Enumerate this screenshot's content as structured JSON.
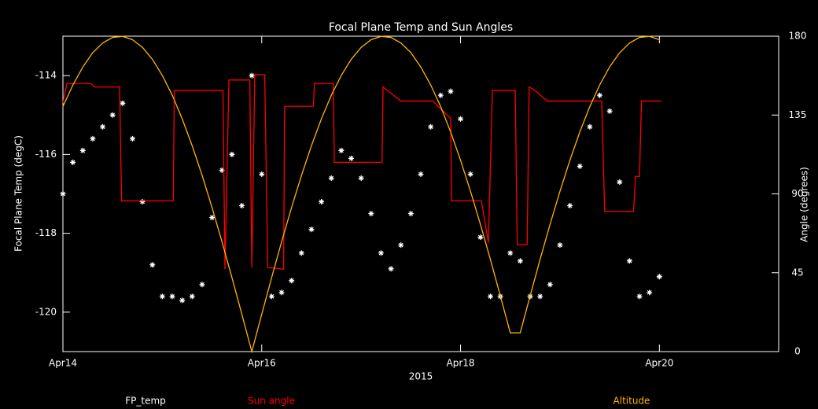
{
  "chart_data": {
    "type": "line",
    "title": "Focal Plane Temp and Sun Angles",
    "xlabel": "2015",
    "ylabel": "Focal Plane Temp (degC)",
    "y2label": "Angle (degrees)",
    "xlim": [
      0,
      7.2
    ],
    "xticks": [
      {
        "value": 0,
        "label": "Apr14"
      },
      {
        "value": 2,
        "label": "Apr16"
      },
      {
        "value": 4,
        "label": "Apr18"
      },
      {
        "value": 6,
        "label": "Apr20"
      }
    ],
    "ylim": [
      -121,
      -113
    ],
    "yticks": [
      -120,
      -118,
      -116,
      -114
    ],
    "y2lim": [
      0,
      180
    ],
    "y2ticks": [
      0,
      45,
      90,
      135,
      180
    ],
    "axis_color": "#ffffff",
    "series": [
      {
        "name": "FP_temp",
        "color": "#ffffff",
        "mode": "markers",
        "axis": "y",
        "x": [
          0,
          0.1,
          0.2,
          0.3,
          0.4,
          0.5,
          0.6,
          0.7,
          0.8,
          0.9,
          1.0,
          1.1,
          1.2,
          1.3,
          1.4,
          1.5,
          1.6,
          1.7,
          1.8,
          1.9,
          2.0,
          2.1,
          2.2,
          2.3,
          2.4,
          2.5,
          2.6,
          2.7,
          2.8,
          2.9,
          3.0,
          3.1,
          3.2,
          3.3,
          3.4,
          3.5,
          3.6,
          3.7,
          3.8,
          3.9,
          4.0,
          4.1,
          4.2,
          4.3,
          4.4,
          4.5,
          4.6,
          4.7,
          4.8,
          4.9,
          5.0,
          5.1,
          5.2,
          5.3,
          5.4,
          5.5,
          5.6,
          5.7,
          5.8,
          5.9,
          6.0
        ],
        "values": [
          -117.0,
          -116.2,
          -115.9,
          -115.6,
          -115.3,
          -115.0,
          -114.7,
          -115.6,
          -117.2,
          -118.8,
          -119.6,
          -119.6,
          -119.7,
          -119.6,
          -119.3,
          -117.6,
          -116.4,
          -116.0,
          -117.3,
          -114.0,
          -116.5,
          -119.6,
          -119.5,
          -119.2,
          -118.5,
          -117.9,
          -117.2,
          -116.6,
          -115.9,
          -116.1,
          -116.6,
          -117.5,
          -118.5,
          -118.9,
          -118.3,
          -117.5,
          -116.5,
          -115.3,
          -114.5,
          -114.4,
          -115.1,
          -116.5,
          -118.1,
          -119.6,
          -119.6,
          -118.5,
          -118.7,
          -119.6,
          -119.6,
          -119.3,
          -118.3,
          -117.3,
          -116.3,
          -115.3,
          -114.5,
          -114.9,
          -116.7,
          -118.7,
          -119.6,
          -119.5,
          -119.1
        ]
      },
      {
        "name": "Sun angle",
        "color": "#ff0000",
        "mode": "line",
        "axis": "y2",
        "x": [
          0,
          0.04,
          0.28,
          0.32,
          0.57,
          0.59,
          1.11,
          1.12,
          1.61,
          1.63,
          1.67,
          1.88,
          1.9,
          1.93,
          2.03,
          2.06,
          2.22,
          2.23,
          2.52,
          2.53,
          2.72,
          2.73,
          3.21,
          3.22,
          3.4,
          3.72,
          3.9,
          3.91,
          4.21,
          4.28,
          4.32,
          4.55,
          4.57,
          4.67,
          4.69,
          4.75,
          4.87,
          5.42,
          5.45,
          5.74,
          5.76,
          5.8,
          5.82,
          6.02
        ],
        "values": [
          142,
          153,
          153,
          151,
          151,
          86,
          86,
          149,
          149,
          47,
          155,
          155,
          48,
          158,
          158,
          48,
          47,
          140,
          140,
          153,
          153,
          108,
          108,
          151,
          143,
          143,
          133,
          86,
          86,
          62,
          149,
          149,
          61,
          61,
          151,
          149,
          143,
          143,
          80,
          80,
          100,
          100,
          143,
          143
        ]
      },
      {
        "name": "Altitude",
        "color": "#ffb400",
        "mode": "line",
        "axis": "y2",
        "x": [
          0,
          0.1,
          0.2,
          0.3,
          0.4,
          0.5,
          0.6,
          0.7,
          0.8,
          0.9,
          1.0,
          1.1,
          1.2,
          1.3,
          1.4,
          1.5,
          1.6,
          1.7,
          1.8,
          1.9,
          2.0,
          2.1,
          2.2,
          2.3,
          2.4,
          2.5,
          2.6,
          2.7,
          2.8,
          2.9,
          3.0,
          3.1,
          3.2,
          3.3,
          3.4,
          3.5,
          3.6,
          3.7,
          3.8,
          3.9,
          4.0,
          4.1,
          4.2,
          4.3,
          4.4,
          4.5,
          4.6,
          4.7,
          4.8,
          4.9,
          5.0,
          5.1,
          5.2,
          5.3,
          5.4,
          5.5,
          5.6,
          5.7,
          5.8,
          5.9,
          6.0
        ],
        "values": [
          139.9,
          152.1,
          162.4,
          170.6,
          176.1,
          179.3,
          179.9,
          178.0,
          173.6,
          166.8,
          157.6,
          146.3,
          132.8,
          117.5,
          100.6,
          82.2,
          62.7,
          42.3,
          21.3,
          0,
          21.3,
          42.3,
          62.7,
          82.2,
          100.6,
          117.5,
          132.8,
          146.3,
          157.6,
          166.8,
          173.6,
          178.0,
          179.9,
          179.3,
          176.1,
          170.6,
          162.4,
          152.1,
          139.8,
          125.4,
          109.2,
          91.5,
          72.6,
          52.6,
          31.8,
          10.7,
          10.7,
          31.8,
          52.6,
          72.6,
          91.5,
          109.2,
          125.4,
          139.8,
          152.2,
          162.5,
          170.5,
          176.1,
          179.3,
          179.9,
          178.0
        ]
      }
    ]
  }
}
